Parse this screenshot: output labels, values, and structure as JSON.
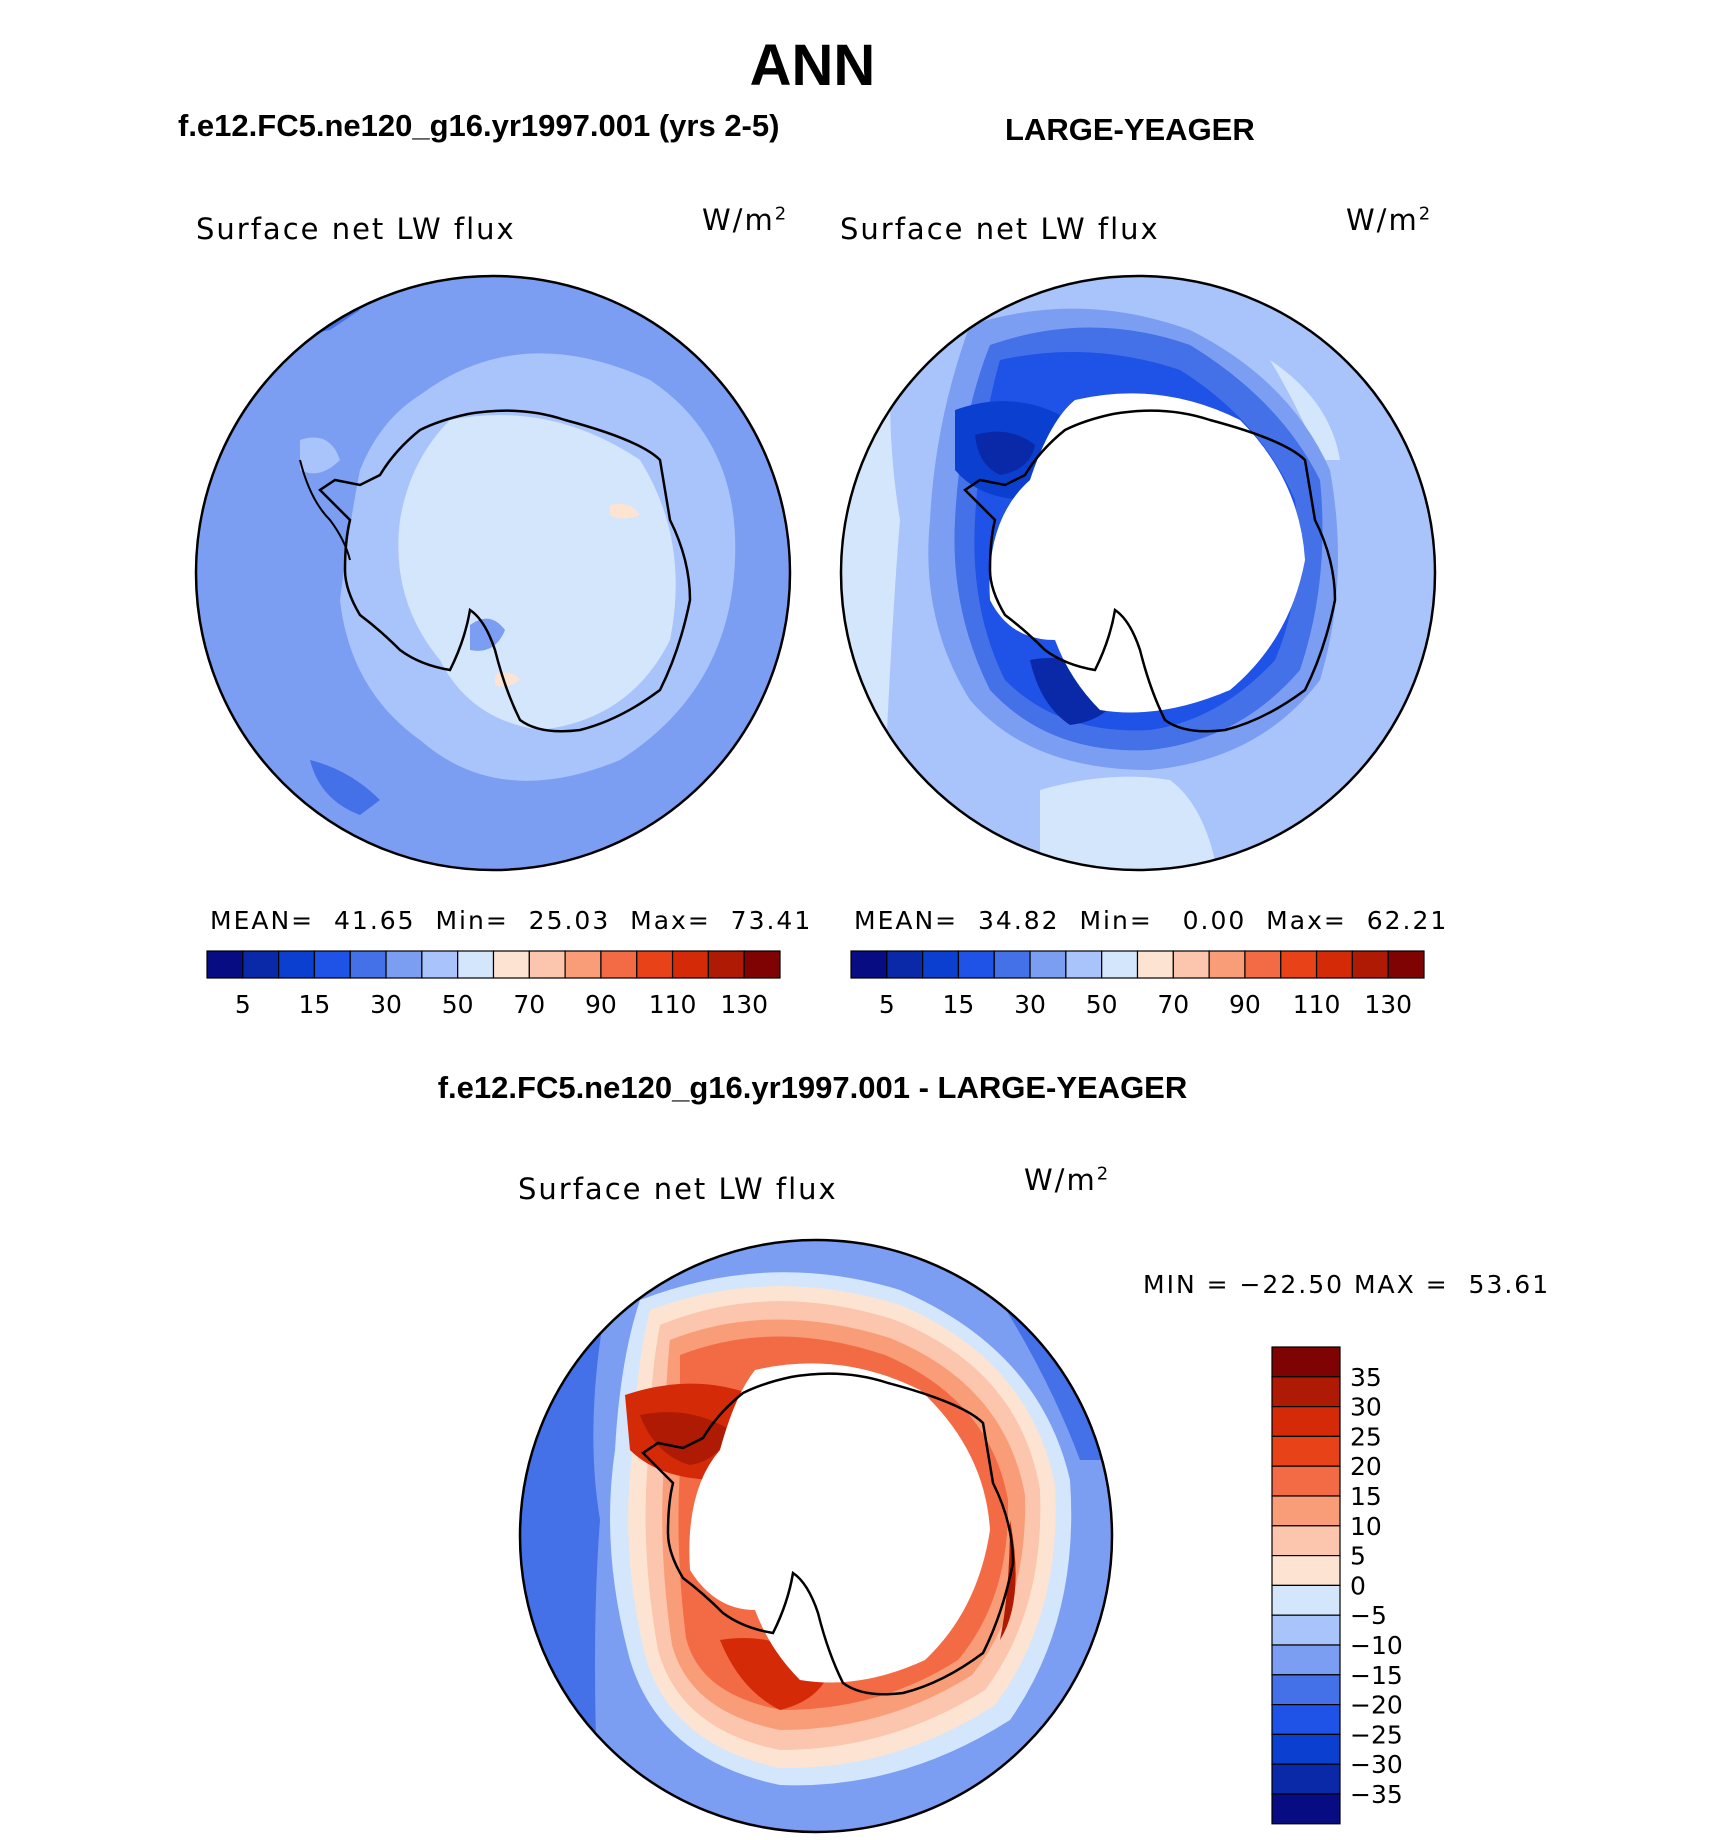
{
  "page": {
    "title": "ANN",
    "panel_1_title": "f.e12.FC5.ne120_g16.yr1997.001 (yrs 2-5)",
    "panel_2_title": "LARGE-YEAGER",
    "diff_title": "f.e12.FC5.ne120_g16.yr1997.001 - LARGE-YEAGER"
  },
  "chart_data": [
    {
      "type": "heatmap",
      "variable_label": "Surface net LW flux",
      "units": "W/m",
      "units_exp": "2",
      "stats_text": "MEAN=  41.65  Min=  25.03  Max=  73.41",
      "mean": 41.65,
      "min": 25.03,
      "max": 73.41,
      "colorbar_ticks": [
        "5",
        "15",
        "30",
        "50",
        "70",
        "90",
        "110",
        "130"
      ],
      "colors": [
        "#070c82",
        "#0a29a8",
        "#0b3fd0",
        "#1f52e6",
        "#4470e8",
        "#7b9ef3",
        "#a9c4fb",
        "#d4e6fc",
        "#fde4d2",
        "#fcc5ad",
        "#f99d79",
        "#f36b45",
        "#e84219",
        "#d42a08",
        "#ae1a03",
        "#7f0303"
      ]
    },
    {
      "type": "heatmap",
      "variable_label": "Surface net LW flux",
      "units": "W/m",
      "units_exp": "2",
      "stats_text": "MEAN=  34.82  Min=   0.00  Max=  62.21",
      "mean": 34.82,
      "min": 0.0,
      "max": 62.21,
      "colorbar_ticks": [
        "5",
        "15",
        "30",
        "50",
        "70",
        "90",
        "110",
        "130"
      ],
      "colors": [
        "#070c82",
        "#0a29a8",
        "#0b3fd0",
        "#1f52e6",
        "#4470e8",
        "#7b9ef3",
        "#a9c4fb",
        "#d4e6fc",
        "#fde4d2",
        "#fcc5ad",
        "#f99d79",
        "#f36b45",
        "#e84219",
        "#d42a08",
        "#ae1a03",
        "#7f0303"
      ]
    },
    {
      "type": "heatmap",
      "variable_label": "Surface net LW flux",
      "units": "W/m",
      "units_exp": "2",
      "stats_text": "MIN = −22.50 MAX =  53.61",
      "min": -22.5,
      "max": 53.61,
      "colorbar_ticks": [
        "35",
        "30",
        "25",
        "20",
        "15",
        "10",
        "5",
        "0",
        "−5",
        "−10",
        "−15",
        "−20",
        "−25",
        "−30",
        "−35"
      ],
      "colors": [
        "#7f0303",
        "#ae1a03",
        "#d42a08",
        "#e84219",
        "#f36b45",
        "#f99d79",
        "#fcc5ad",
        "#fde4d2",
        "#d4e6fc",
        "#a9c4fb",
        "#7b9ef3",
        "#4470e8",
        "#1f52e6",
        "#0b3fd0",
        "#0a29a8",
        "#070c82"
      ]
    }
  ]
}
